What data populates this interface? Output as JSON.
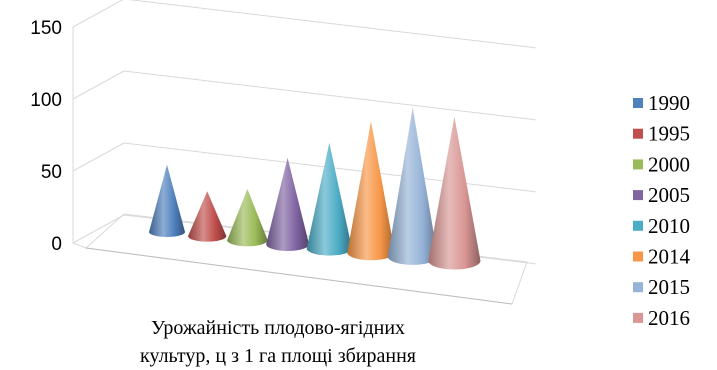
{
  "chart_data": {
    "type": "bar",
    "style": "3d-cone",
    "categories": [
      ""
    ],
    "series": [
      {
        "name": "1990",
        "values": [
          42
        ],
        "color": "#4f81bd"
      },
      {
        "name": "1995",
        "values": [
          28
        ],
        "color": "#c0504d"
      },
      {
        "name": "2000",
        "values": [
          32
        ],
        "color": "#9bbb59"
      },
      {
        "name": "2005",
        "values": [
          54
        ],
        "color": "#8064a2"
      },
      {
        "name": "2010",
        "values": [
          66
        ],
        "color": "#4bacc6"
      },
      {
        "name": "2014",
        "values": [
          82
        ],
        "color": "#f79646"
      },
      {
        "name": "2015",
        "values": [
          93
        ],
        "color": "#95b3d7"
      },
      {
        "name": "2016",
        "values": [
          90
        ],
        "color": "#d99694"
      }
    ],
    "title": "",
    "xlabel": [
      "Урожайність плодово-ягідних",
      "культур, ц з 1 га площі збирання"
    ],
    "ylabel": "",
    "ylim": [
      0,
      150
    ],
    "yticks": [
      "0",
      "50",
      "100",
      "150"
    ],
    "grid": true,
    "legend_position": "right"
  }
}
